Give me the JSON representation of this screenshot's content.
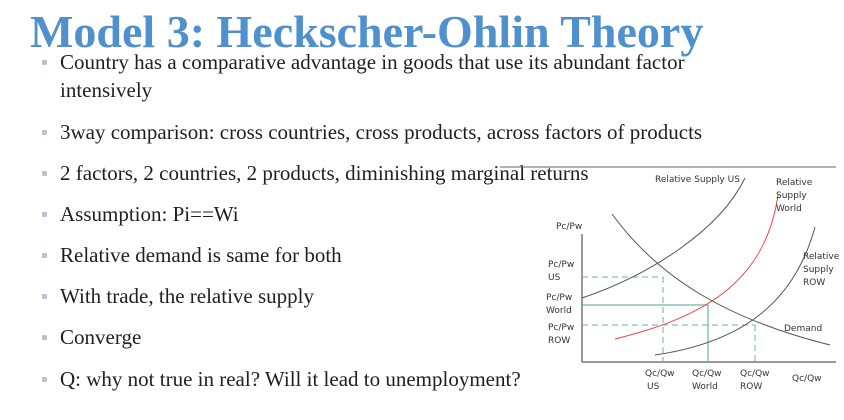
{
  "slide": {
    "title": "Model 3: Heckscher-Ohlin Theory",
    "bullets": [
      {
        "line1": "Country has a comparative advantage in goods that use its abundant factor",
        "line2": "intensively"
      },
      {
        "line1": "3way comparison: cross countries, cross products, across factors of products"
      },
      {
        "line1": "2 factors, 2 countries, 2 products, diminishing marginal returns"
      },
      {
        "line1": "Assumption: Pi==Wi"
      },
      {
        "line1": "Relative demand is same for both"
      },
      {
        "line1": "With trade, the relative supply"
      },
      {
        "line1": "Converge"
      },
      {
        "line1": "Q: why not true in real? Will it lead to unemployment?"
      }
    ]
  },
  "diagram": {
    "y_axis_label": "Pc/Pw",
    "x_axis_label": "Qc/Qw",
    "curves": {
      "supply_us": "Relative Supply US",
      "supply_world_1": "Relative",
      "supply_world_2": "Supply",
      "supply_world_3": "World",
      "supply_row_1": "Relative",
      "supply_row_2": "Supply",
      "supply_row_3": "ROW",
      "demand": "Demand"
    },
    "y_ticks": [
      {
        "line1": "Pc/Pw",
        "line2": "US"
      },
      {
        "line1": "Pc/Pw",
        "line2": "World"
      },
      {
        "line1": "Pc/Pw",
        "line2": "ROW"
      }
    ],
    "x_ticks": [
      {
        "line1": "Qc/Qw",
        "line2": "US"
      },
      {
        "line1": "Qc/Qw",
        "line2": "World"
      },
      {
        "line1": "Qc/Qw",
        "line2": "ROW"
      }
    ],
    "colors": {
      "world_supply": "#e8473a",
      "curve": "#555555",
      "guide_line": "#6fb3a8",
      "axis": "#333333"
    }
  }
}
